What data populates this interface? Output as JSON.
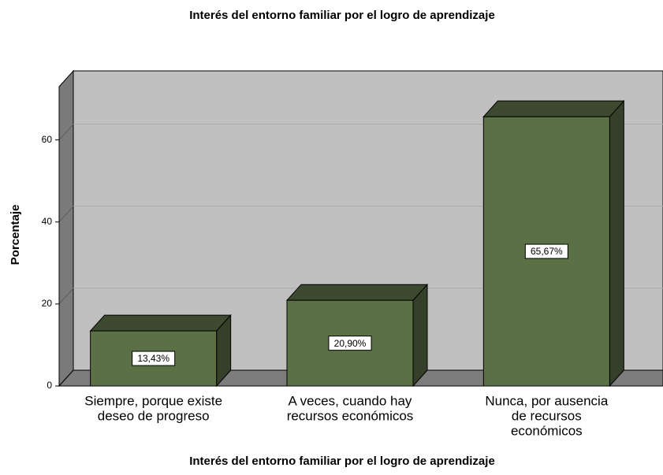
{
  "chart_data": {
    "type": "bar3d",
    "title": "Interés del entorno familiar por el logro de aprendizaje",
    "x_label": "Interés del entorno familiar por el logro de aprendizaje",
    "y_label": "Porcentaje",
    "categories": [
      [
        "Siempre, porque existe",
        "deseo de progreso"
      ],
      [
        "A veces, cuando hay",
        "recursos económicos"
      ],
      [
        "Nunca, por ausencia",
        "de recursos",
        "económicos"
      ]
    ],
    "values": [
      13.43,
      20.9,
      65.67
    ],
    "value_labels": [
      "13,43%",
      "20,90%",
      "65,67%"
    ],
    "color": "#5b7045",
    "ylim": [
      0,
      73
    ],
    "yticks": [
      0,
      20,
      40,
      60
    ],
    "grid": true
  }
}
